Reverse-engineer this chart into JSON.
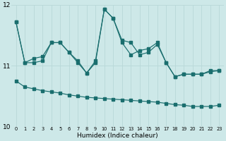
{
  "xlabel": "Humidex (Indice chaleur)",
  "bg_color": "#cde8e8",
  "grid_color": "#b8d8d8",
  "line_color": "#1a6e6e",
  "xlim": [
    -0.5,
    23.5
  ],
  "ylim": [
    10,
    12
  ],
  "yticks": [
    10,
    11,
    12
  ],
  "line1": [
    11.72,
    11.05,
    11.05,
    11.08,
    11.38,
    11.38,
    11.22,
    11.05,
    10.88,
    11.05,
    11.93,
    11.78,
    11.38,
    11.18,
    11.25,
    11.28,
    11.38,
    11.05,
    10.82,
    10.86,
    10.86,
    10.86,
    10.9,
    10.92
  ],
  "line2": [
    11.72,
    11.05,
    11.12,
    11.15,
    11.38,
    11.38,
    11.22,
    11.08,
    10.88,
    11.08,
    11.93,
    11.78,
    11.42,
    11.38,
    11.18,
    11.22,
    11.35,
    11.05,
    10.82,
    10.86,
    10.86,
    10.86,
    10.92,
    10.92
  ],
  "line3": [
    10.75,
    10.65,
    10.62,
    10.59,
    10.57,
    10.55,
    10.52,
    10.5,
    10.48,
    10.47,
    10.46,
    10.45,
    10.44,
    10.43,
    10.42,
    10.41,
    10.4,
    10.38,
    10.36,
    10.35,
    10.33,
    10.33,
    10.33,
    10.35
  ]
}
